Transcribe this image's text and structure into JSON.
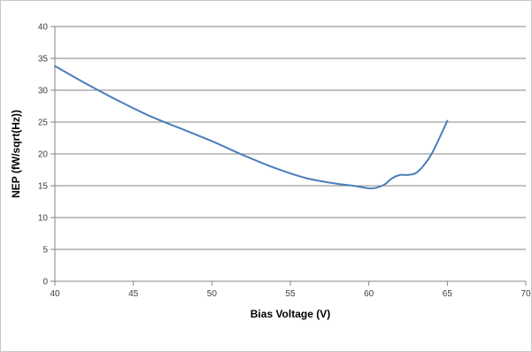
{
  "chart_data": {
    "type": "line",
    "title": "",
    "xlabel": "Bias Voltage (V)",
    "ylabel": "NEP (fW/sqrt(Hz))",
    "xlim": [
      40,
      70
    ],
    "ylim": [
      0,
      40
    ],
    "x_ticks": [
      "40",
      "45",
      "50",
      "55",
      "60",
      "65",
      "70"
    ],
    "y_ticks": [
      "0",
      "5",
      "10",
      "15",
      "20",
      "25",
      "30",
      "35",
      "40"
    ],
    "grid": "horizontal",
    "legend": "none",
    "colors": {
      "series": "#4a7ebb",
      "grid": "#868686",
      "axis": "#868686"
    },
    "series": [
      {
        "x": [
          40,
          42,
          44,
          46,
          48,
          50,
          52,
          54,
          56,
          58,
          59,
          60,
          60.5,
          61,
          61.5,
          62,
          62.5,
          63,
          63.5,
          64,
          64.5,
          65
        ],
        "y": [
          33.8,
          31.0,
          28.4,
          26.0,
          24.0,
          22.0,
          19.8,
          17.8,
          16.2,
          15.3,
          15.0,
          14.6,
          14.7,
          15.2,
          16.2,
          16.7,
          16.7,
          17.0,
          18.2,
          20.0,
          22.5,
          25.2
        ]
      }
    ]
  }
}
